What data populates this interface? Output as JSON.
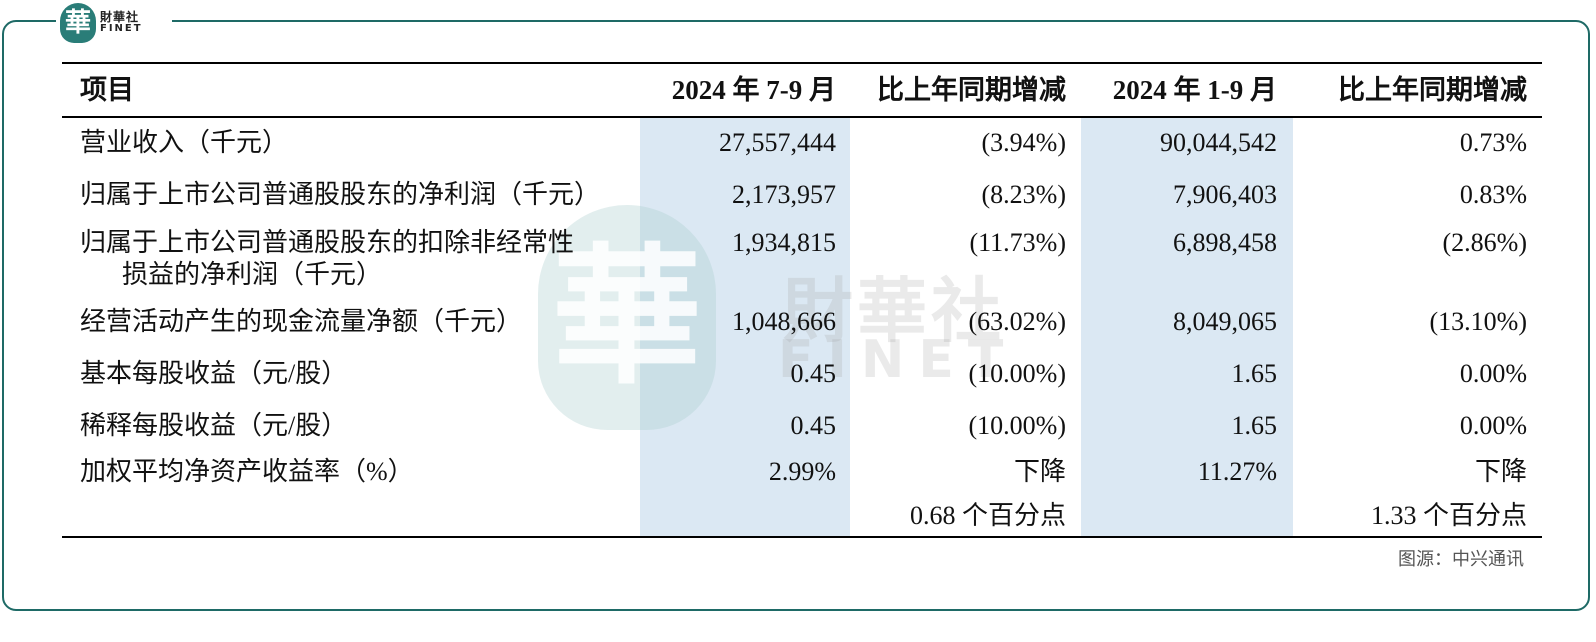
{
  "logo": {
    "mark": "華",
    "cn": "財華社",
    "en": "FINET"
  },
  "watermark": {
    "mark": "華",
    "cn": "財華社",
    "en": "FINET"
  },
  "table": {
    "headers": [
      "项目",
      "2024 年 7-9 月",
      "比上年同期增减",
      "2024 年 1-9 月",
      "比上年同期增减"
    ],
    "rows": [
      {
        "label": "营业收入（千元）",
        "q3": "27,557,444",
        "q3_chg": "(3.94%)",
        "ytd": "90,044,542",
        "ytd_chg": "0.73%"
      },
      {
        "label": "归属于上市公司普通股股东的净利润（千元）",
        "q3": "2,173,957",
        "q3_chg": "(8.23%)",
        "ytd": "7,906,403",
        "ytd_chg": "0.83%"
      },
      {
        "label": "归属于上市公司普通股股东的扣除非经常性",
        "label2": "损益的净利润（千元）",
        "q3": "1,934,815",
        "q3_chg": "(11.73%)",
        "ytd": "6,898,458",
        "ytd_chg": "(2.86%)"
      },
      {
        "label": "经营活动产生的现金流量净额（千元）",
        "q3": "1,048,666",
        "q3_chg": "(63.02%)",
        "ytd": "8,049,065",
        "ytd_chg": "(13.10%)"
      },
      {
        "label": "基本每股收益（元/股）",
        "q3": "0.45",
        "q3_chg": "(10.00%)",
        "ytd": "1.65",
        "ytd_chg": "0.00%"
      },
      {
        "label": "稀释每股收益（元/股）",
        "q3": "0.45",
        "q3_chg": "(10.00%)",
        "ytd": "1.65",
        "ytd_chg": "0.00%"
      },
      {
        "label": "加权平均净资产收益率（%）",
        "q3": "2.99%",
        "q3_chg": "下降",
        "q3_chg2": "0.68 个百分点",
        "ytd": "11.27%",
        "ytd_chg": "下降",
        "ytd_chg2": "1.33 个百分点"
      }
    ]
  },
  "source": "图源：中兴通讯",
  "colors": {
    "frame": "#1e6a66",
    "shade": "#dbe8f3",
    "logo": "#2a7d78"
  }
}
